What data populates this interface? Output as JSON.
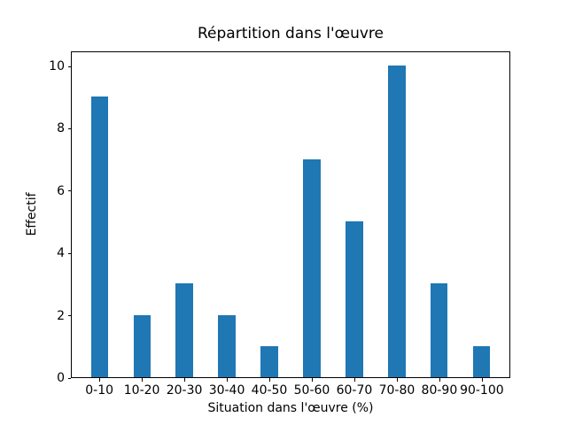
{
  "figure": {
    "background_color": "#ffffff",
    "spine_color": "#000000",
    "text_color": "#000000"
  },
  "chart_data": {
    "type": "bar",
    "title": "Répartition dans l'œuvre",
    "xlabel": "Situation dans l'œuvre (%)",
    "ylabel": "Effectif",
    "categories": [
      "0-10",
      "10-20",
      "20-30",
      "30-40",
      "40-50",
      "50-60",
      "60-70",
      "70-80",
      "80-90",
      "90-100"
    ],
    "values": [
      9,
      2,
      3,
      2,
      1,
      7,
      5,
      10,
      3,
      1
    ],
    "yticks": [
      0,
      2,
      4,
      6,
      8,
      10
    ],
    "ylim": [
      0,
      10.5
    ],
    "bar_color": "#1f77b4",
    "bar_width_fraction": 0.4,
    "grid": false,
    "legend_position": "none"
  }
}
